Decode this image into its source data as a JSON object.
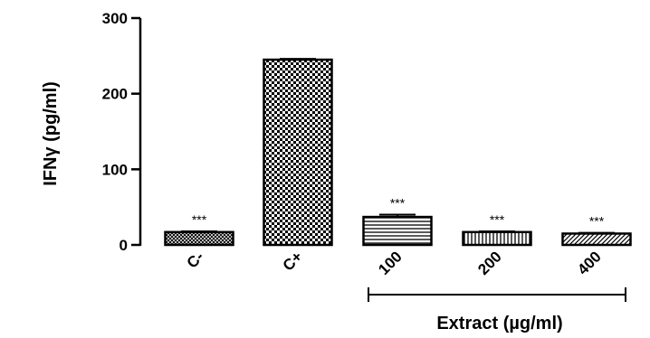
{
  "chart_data": {
    "type": "bar",
    "categories": [
      "C-",
      "C+",
      "100",
      "200",
      "400"
    ],
    "values": [
      17,
      245,
      37,
      17,
      15
    ],
    "error": [
      1,
      1,
      3,
      1,
      1
    ],
    "significance": [
      "***",
      "",
      "***",
      "***",
      "***"
    ],
    "patterns": [
      "crosshatch-small",
      "checker",
      "horizontal-lines",
      "vertical-lines",
      "diagonal-lines"
    ],
    "title": "",
    "ylabel": "IFNγ (pg/ml)",
    "xlabel": "Extract (µg/ml)",
    "ylim": [
      0,
      300
    ],
    "yticks": [
      0,
      100,
      200,
      300
    ],
    "grid": false,
    "legend": "none",
    "bar_color": "#000000"
  }
}
